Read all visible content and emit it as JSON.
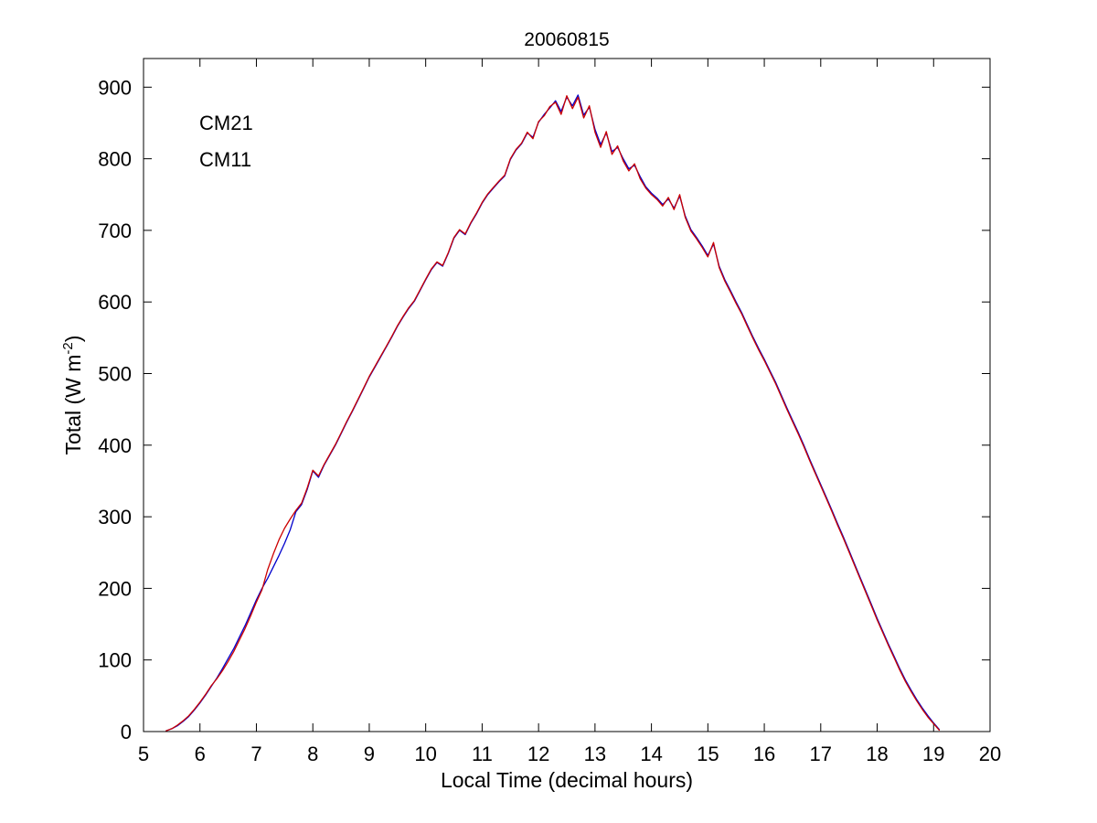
{
  "page": {
    "background": "#ffffff"
  },
  "chart_data": {
    "type": "line",
    "title": "20060815",
    "xlabel": "Local Time (decimal hours)",
    "ylabel": "Total (W m-2)",
    "ylabel_parts": [
      "Total (W m",
      "-2",
      ")"
    ],
    "xlim": [
      5,
      20
    ],
    "ylim": [
      0,
      940
    ],
    "xticks": [
      5,
      6,
      7,
      8,
      9,
      10,
      11,
      12,
      13,
      14,
      15,
      16,
      17,
      18,
      19,
      20
    ],
    "yticks": [
      0,
      100,
      200,
      300,
      400,
      500,
      600,
      700,
      800,
      900
    ],
    "grid": false,
    "legend_position": "upper-left-inside-text-only",
    "legend": [
      {
        "label": "CM21",
        "color": "#0000cc"
      },
      {
        "label": "CM11",
        "color": "#cc0000"
      }
    ],
    "x": [
      5.4,
      5.5,
      5.6,
      5.7,
      5.8,
      5.9,
      6.0,
      6.1,
      6.2,
      6.3,
      6.4,
      6.5,
      6.6,
      6.7,
      6.8,
      6.9,
      7.0,
      7.1,
      7.2,
      7.3,
      7.4,
      7.5,
      7.6,
      7.7,
      7.8,
      7.9,
      8.0,
      8.1,
      8.2,
      8.3,
      8.4,
      8.5,
      8.6,
      8.7,
      8.8,
      8.9,
      9.0,
      9.1,
      9.2,
      9.3,
      9.4,
      9.5,
      9.6,
      9.7,
      9.8,
      9.9,
      10.0,
      10.1,
      10.2,
      10.3,
      10.4,
      10.5,
      10.6,
      10.7,
      10.8,
      10.9,
      11.0,
      11.1,
      11.2,
      11.3,
      11.4,
      11.5,
      11.6,
      11.7,
      11.8,
      11.9,
      12.0,
      12.1,
      12.2,
      12.3,
      12.4,
      12.5,
      12.6,
      12.7,
      12.8,
      12.9,
      13.0,
      13.1,
      13.2,
      13.3,
      13.4,
      13.5,
      13.6,
      13.7,
      13.8,
      13.9,
      14.0,
      14.1,
      14.2,
      14.3,
      14.4,
      14.5,
      14.6,
      14.7,
      14.8,
      14.9,
      15.0,
      15.1,
      15.2,
      15.3,
      15.4,
      15.5,
      15.6,
      15.7,
      15.8,
      15.9,
      16.0,
      16.1,
      16.2,
      16.3,
      16.4,
      16.5,
      16.6,
      16.7,
      16.8,
      16.9,
      17.0,
      17.1,
      17.2,
      17.3,
      17.4,
      17.5,
      17.6,
      17.7,
      17.8,
      17.9,
      18.0,
      18.1,
      18.2,
      18.3,
      18.4,
      18.5,
      18.6,
      18.7,
      18.8,
      18.9,
      19.0,
      19.1
    ],
    "series": [
      {
        "name": "CM21",
        "color": "#0000cc",
        "values": [
          1,
          4,
          8,
          14,
          21,
          30,
          40,
          51,
          63,
          75,
          88,
          102,
          116,
          132,
          148,
          166,
          184,
          200,
          214,
          230,
          246,
          263,
          282,
          307,
          317,
          338,
          364,
          355,
          372,
          386,
          400,
          416,
          432,
          447,
          463,
          479,
          495,
          509,
          523,
          537,
          551,
          566,
          579,
          591,
          601,
          616,
          631,
          645,
          655,
          650,
          668,
          689,
          700,
          694,
          710,
          723,
          738,
          750,
          759,
          768,
          776,
          799,
          812,
          821,
          836,
          830,
          851,
          862,
          871,
          881,
          866,
          886,
          874,
          889,
          861,
          872,
          841,
          820,
          836,
          810,
          816,
          800,
          786,
          791,
          775,
          761,
          752,
          745,
          736,
          744,
          731,
          748,
          720,
          701,
          690,
          678,
          665,
          681,
          650,
          631,
          616,
          600,
          585,
          568,
          551,
          535,
          520,
          504,
          488,
          470,
          452,
          435,
          418,
          400,
          381,
          363,
          345,
          327,
          309,
          290,
          272,
          253,
          234,
          215,
          196,
          177,
          158,
          140,
          122,
          105,
          88,
          72,
          58,
          45,
          33,
          22,
          12,
          3
        ]
      },
      {
        "name": "CM11",
        "color": "#cc0000",
        "values": [
          1,
          4,
          9,
          15,
          22,
          31,
          41,
          52,
          64,
          74,
          85,
          98,
          112,
          128,
          144,
          162,
          181,
          198,
          226,
          248,
          268,
          284,
          297,
          309,
          319,
          340,
          365,
          357,
          373,
          387,
          401,
          417,
          433,
          448,
          464,
          480,
          496,
          510,
          524,
          538,
          552,
          567,
          580,
          592,
          602,
          617,
          632,
          646,
          656,
          651,
          669,
          690,
          701,
          695,
          711,
          724,
          739,
          751,
          760,
          769,
          777,
          800,
          813,
          822,
          837,
          828,
          852,
          860,
          873,
          879,
          862,
          888,
          870,
          886,
          857,
          874,
          837,
          816,
          838,
          806,
          818,
          797,
          783,
          793,
          772,
          759,
          750,
          743,
          734,
          746,
          729,
          750,
          718,
          699,
          688,
          676,
          663,
          683,
          648,
          629,
          614,
          598,
          583,
          566,
          549,
          533,
          518,
          502,
          486,
          468,
          450,
          433,
          416,
          398,
          379,
          361,
          343,
          325,
          307,
          288,
          270,
          251,
          232,
          213,
          194,
          175,
          156,
          138,
          120,
          103,
          86,
          70,
          56,
          43,
          31,
          20,
          11,
          2
        ]
      }
    ]
  }
}
